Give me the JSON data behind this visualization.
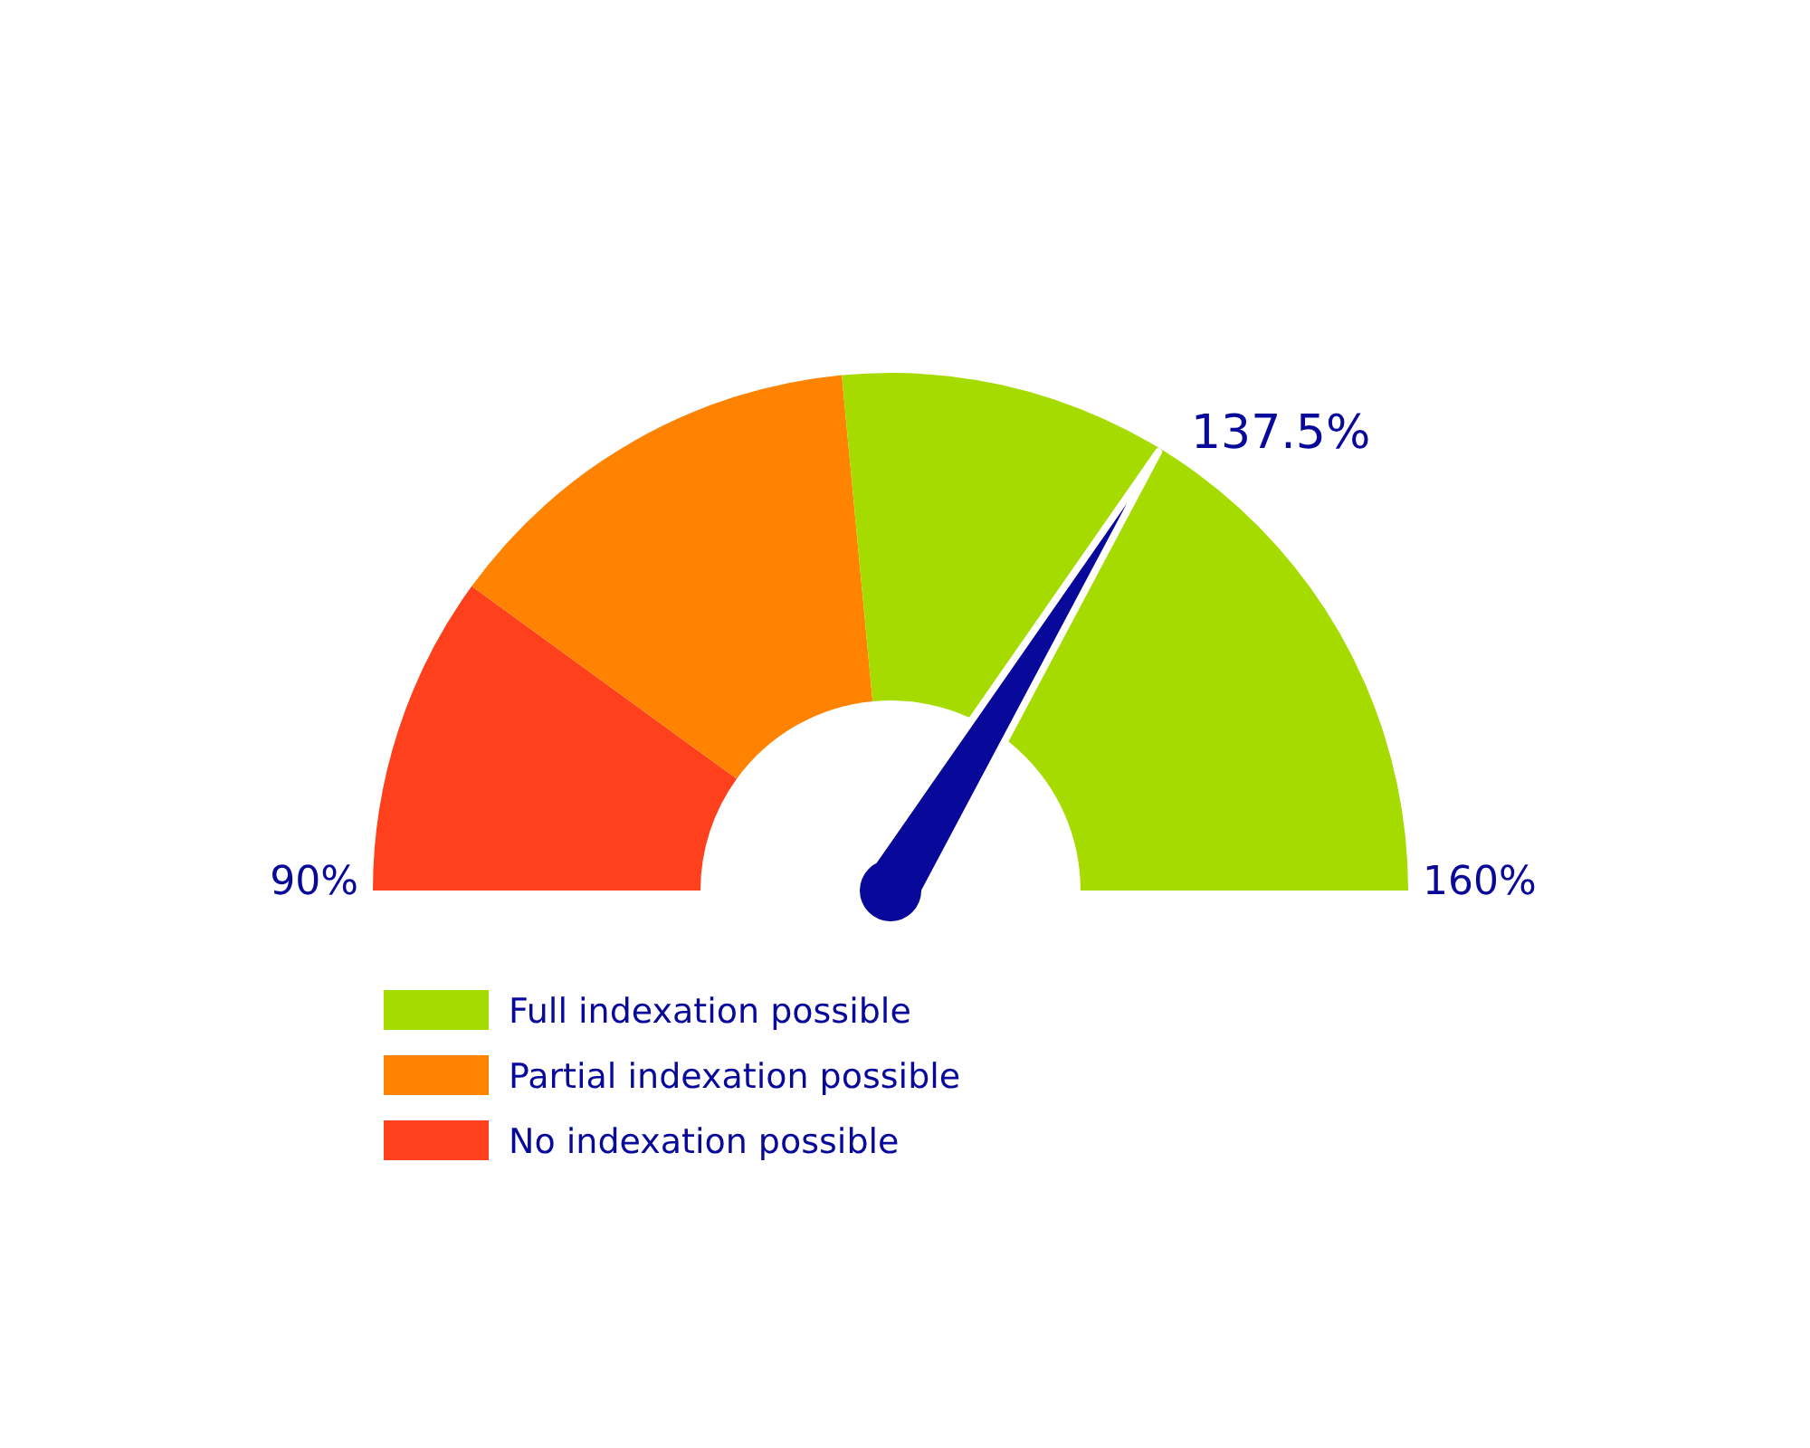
{
  "chart_data": {
    "type": "donut",
    "categories": [
      "Full indexation possible",
      "Partial indexation possible",
      "No indexation possible"
    ],
    "values": [
      53,
      27,
      20
    ],
    "colors": [
      "#a6db00",
      "#ff8300",
      "#ff401c"
    ],
    "needle": "Full indexation possible",
    "legend": "bottom",
    "annotations": [
      "90%",
      "160%",
      "137.5%"
    ]
  }
}
